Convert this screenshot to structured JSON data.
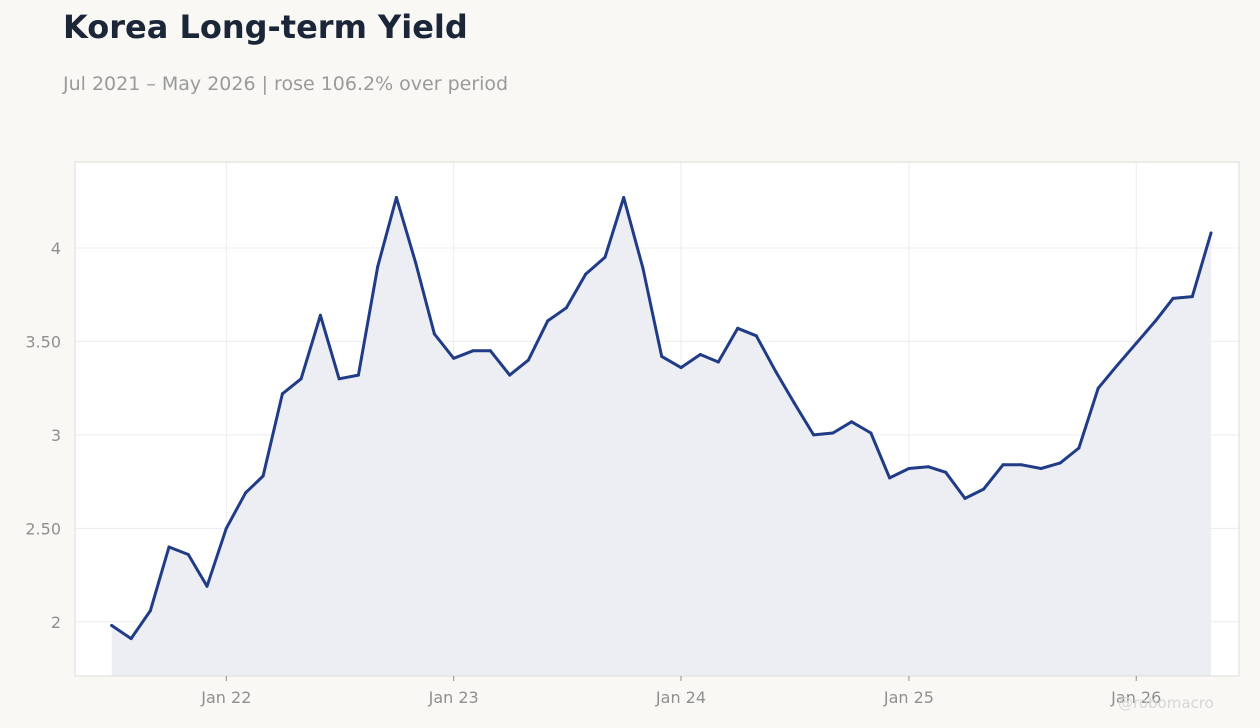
{
  "title": "Korea Long-term Yield",
  "subtitle": "Jul 2021 – May 2026 | rose 106.2% over period",
  "watermark": "@robomacro",
  "colors": {
    "line": "#213c87",
    "area": "#edeef4",
    "plot_background": "#ffffff",
    "page_background": "#f9f8f5",
    "grid": "#ececf0",
    "frame": "#dcdcd8"
  },
  "chart_data": {
    "type": "area",
    "x_ticks": [
      {
        "date": "2022-01-01",
        "label": "Jan 22"
      },
      {
        "date": "2023-01-01",
        "label": "Jan 23"
      },
      {
        "date": "2024-01-01",
        "label": "Jan 24"
      },
      {
        "date": "2025-01-01",
        "label": "Jan 25"
      },
      {
        "date": "2026-01-01",
        "label": "Jan 26"
      }
    ],
    "y_ticks": [
      {
        "value": 2,
        "label": "2"
      },
      {
        "value": 2.5,
        "label": "2.50"
      },
      {
        "value": 3,
        "label": "3"
      },
      {
        "value": 3.5,
        "label": "3.50"
      },
      {
        "value": 4,
        "label": "4"
      }
    ],
    "xlim": [
      "2021-05-03",
      "2026-06-15"
    ],
    "ylim": [
      1.71,
      4.46
    ],
    "grid": true,
    "series": [
      {
        "x": [
          "2021-07-01",
          "2021-08-01",
          "2021-09-01",
          "2021-10-01",
          "2021-11-01",
          "2021-12-01",
          "2022-01-01",
          "2022-02-01",
          "2022-03-01",
          "2022-04-01",
          "2022-05-01",
          "2022-06-01",
          "2022-07-01",
          "2022-08-01",
          "2022-09-01",
          "2022-10-01",
          "2022-11-01",
          "2022-12-01",
          "2023-01-01",
          "2023-02-01",
          "2023-03-01",
          "2023-04-01",
          "2023-05-01",
          "2023-06-01",
          "2023-07-01",
          "2023-08-01",
          "2023-09-01",
          "2023-10-01",
          "2023-11-01",
          "2023-12-01",
          "2024-01-01",
          "2024-02-01",
          "2024-03-01",
          "2024-04-01",
          "2024-05-01",
          "2024-06-01",
          "2024-07-01",
          "2024-08-01",
          "2024-09-01",
          "2024-10-01",
          "2024-11-01",
          "2024-12-01",
          "2025-01-01",
          "2025-02-01",
          "2025-03-01",
          "2025-04-01",
          "2025-05-01",
          "2025-06-01",
          "2025-07-01",
          "2025-08-01",
          "2025-09-01",
          "2025-10-01",
          "2025-11-01",
          "2025-12-01",
          "2026-01-01",
          "2026-02-01",
          "2026-03-01",
          "2026-04-01",
          "2026-05-01"
        ],
        "y": [
          1.98,
          1.91,
          2.06,
          2.4,
          2.36,
          2.19,
          2.5,
          2.69,
          2.78,
          3.22,
          3.3,
          3.64,
          3.3,
          3.32,
          3.9,
          4.27,
          3.92,
          3.54,
          3.41,
          3.45,
          3.45,
          3.32,
          3.4,
          3.61,
          3.68,
          3.86,
          3.95,
          4.27,
          3.89,
          3.42,
          3.36,
          3.43,
          3.39,
          3.57,
          3.53,
          3.34,
          3.17,
          3.0,
          3.01,
          3.07,
          3.01,
          2.77,
          2.82,
          2.83,
          2.8,
          2.66,
          2.71,
          2.84,
          2.84,
          2.82,
          2.85,
          2.93,
          3.25,
          3.37,
          3.49,
          3.61,
          3.73,
          3.74,
          4.08
        ]
      }
    ]
  }
}
